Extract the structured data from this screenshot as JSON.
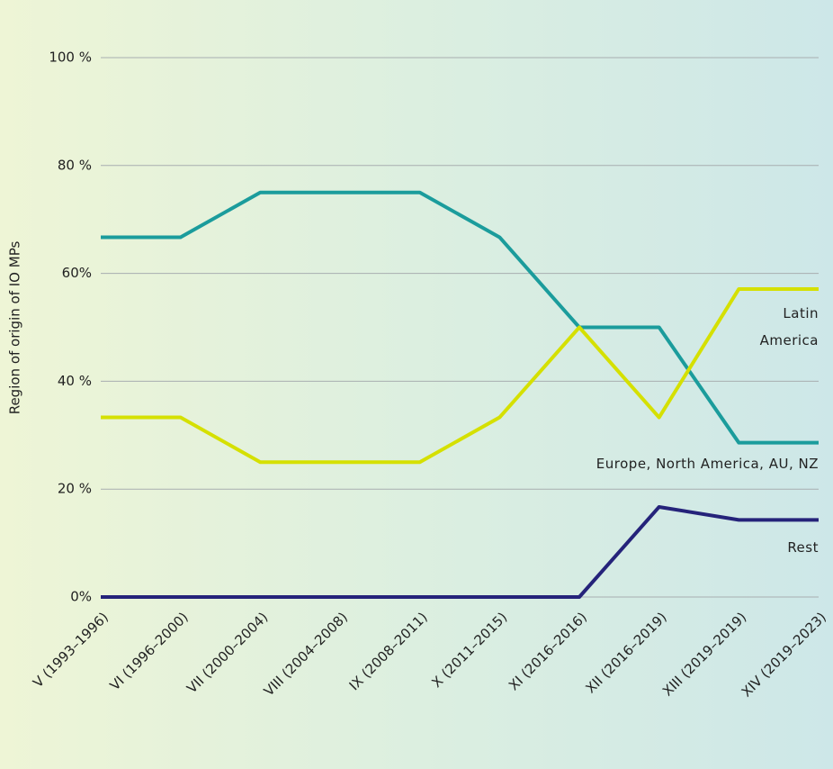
{
  "chart_data": {
    "type": "line",
    "y_label": "Region of origin of IO MPs",
    "categories": [
      "V (1993–1996)",
      "VI (1996–2000)",
      "VII (2000–2004)",
      "VIII (2004–2008)",
      "IX (2008–2011)",
      "X (2011–2015)",
      "XI (2016–2016)",
      "XII (2016–2019)",
      "XIII (2019–2019)",
      "XIV (2019–2023)"
    ],
    "series": [
      {
        "name": "Europe, North America, AU, NZ",
        "color": "#1b9c9c",
        "values": [
          66.7,
          66.7,
          75,
          75,
          75,
          66.7,
          50,
          50,
          28.6,
          28.6
        ]
      },
      {
        "name": "Latin America",
        "color": "#d5e000",
        "values": [
          33.3,
          33.3,
          25,
          25,
          25,
          33.3,
          50,
          33.3,
          57.1,
          57.1
        ]
      },
      {
        "name": "Rest",
        "color": "#25237a",
        "values": [
          0,
          0,
          0,
          0,
          0,
          0,
          0,
          16.7,
          14.3,
          14.3
        ]
      }
    ],
    "ylim": [
      0,
      100
    ],
    "yticks": [
      {
        "value": 0,
        "label": "0%"
      },
      {
        "value": 20,
        "label": "20 %"
      },
      {
        "value": 40,
        "label": "40 %"
      },
      {
        "value": 60,
        "label": "60%"
      },
      {
        "value": 80,
        "label": "80 %"
      },
      {
        "value": 100,
        "label": "100 %"
      }
    ],
    "grid": true
  }
}
